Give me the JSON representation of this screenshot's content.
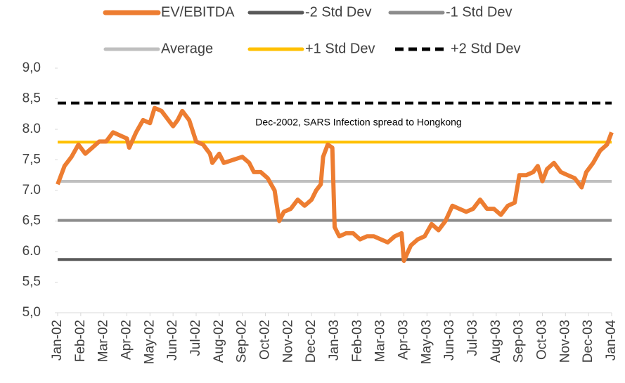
{
  "chart_data": {
    "type": "line",
    "annotation": "Dec-2002, SARS Infection spread to Hongkong",
    "xlim": [
      0,
      24
    ],
    "xticks": [
      {
        "value": 0,
        "label": "Jan-02"
      },
      {
        "value": 1,
        "label": "Feb-02"
      },
      {
        "value": 2,
        "label": "Mar-02"
      },
      {
        "value": 3,
        "label": "Apr-02"
      },
      {
        "value": 4,
        "label": "May-02"
      },
      {
        "value": 5,
        "label": "Jun-02"
      },
      {
        "value": 6,
        "label": "Jul-02"
      },
      {
        "value": 7,
        "label": "Aug-02"
      },
      {
        "value": 8,
        "label": "Sep-02"
      },
      {
        "value": 9,
        "label": "Oct-02"
      },
      {
        "value": 10,
        "label": "Nov-02"
      },
      {
        "value": 11,
        "label": "Dec-02"
      },
      {
        "value": 12,
        "label": "Jan-03"
      },
      {
        "value": 13,
        "label": "Feb-03"
      },
      {
        "value": 14,
        "label": "Mar-03"
      },
      {
        "value": 15,
        "label": "Apr-03"
      },
      {
        "value": 16,
        "label": "May-03"
      },
      {
        "value": 17,
        "label": "Jun-03"
      },
      {
        "value": 18,
        "label": "Jul-03"
      },
      {
        "value": 19,
        "label": "Aug-03"
      },
      {
        "value": 20,
        "label": "Sep-03"
      },
      {
        "value": 21,
        "label": "Oct-03"
      },
      {
        "value": 22,
        "label": "Nov-03"
      },
      {
        "value": 23,
        "label": "Dec-03"
      },
      {
        "value": 24,
        "label": "Jan-04"
      }
    ],
    "ylim": [
      5.0,
      9.0
    ],
    "yticks": [
      {
        "value": 5.0,
        "label": "5,0"
      },
      {
        "value": 5.5,
        "label": "5,5"
      },
      {
        "value": 6.0,
        "label": "6.0"
      },
      {
        "value": 6.5,
        "label": "6,5"
      },
      {
        "value": 7.0,
        "label": "7.0"
      },
      {
        "value": 7.5,
        "label": "7,5"
      },
      {
        "value": 8.0,
        "label": "8.0"
      },
      {
        "value": 8.5,
        "label": "8,5"
      },
      {
        "value": 9.0,
        "label": "9,0"
      }
    ],
    "series": [
      {
        "name": "EV/EBITDA",
        "color": "#ed7d31",
        "x": [
          0,
          0.3,
          0.6,
          0.9,
          1.2,
          1.5,
          1.8,
          2.1,
          2.4,
          2.7,
          3.0,
          3.1,
          3.4,
          3.7,
          4.0,
          4.2,
          4.5,
          4.8,
          5.0,
          5.2,
          5.4,
          5.7,
          6.0,
          6.3,
          6.6,
          6.7,
          7.0,
          7.2,
          7.6,
          8.0,
          8.3,
          8.5,
          8.8,
          9.1,
          9.4,
          9.6,
          9.8,
          10.1,
          10.4,
          10.7,
          11.0,
          11.2,
          11.4,
          11.5,
          11.7,
          11.9,
          12.0,
          12.2,
          12.5,
          12.8,
          13.1,
          13.4,
          13.7,
          14.0,
          14.3,
          14.6,
          14.9,
          15.0,
          15.3,
          15.6,
          15.9,
          16.2,
          16.5,
          16.8,
          17.1,
          17.4,
          17.7,
          18.0,
          18.3,
          18.6,
          18.9,
          19.2,
          19.5,
          19.8,
          20.0,
          20.3,
          20.6,
          20.8,
          21.0,
          21.2,
          21.5,
          21.8,
          22.1,
          22.4,
          22.7,
          22.9,
          23.2,
          23.5,
          23.8,
          24.0
        ],
        "values": [
          7.1,
          7.4,
          7.55,
          7.75,
          7.6,
          7.7,
          7.8,
          7.8,
          7.95,
          7.9,
          7.85,
          7.7,
          7.95,
          8.15,
          8.1,
          8.35,
          8.3,
          8.15,
          8.05,
          8.15,
          8.3,
          8.15,
          7.8,
          7.75,
          7.6,
          7.45,
          7.6,
          7.45,
          7.5,
          7.55,
          7.45,
          7.3,
          7.3,
          7.2,
          7.0,
          6.5,
          6.65,
          6.7,
          6.85,
          6.75,
          6.85,
          7.0,
          7.1,
          7.55,
          7.75,
          7.7,
          6.4,
          6.25,
          6.3,
          6.3,
          6.2,
          6.25,
          6.25,
          6.2,
          6.15,
          6.25,
          6.3,
          5.85,
          6.1,
          6.2,
          6.25,
          6.45,
          6.35,
          6.5,
          6.75,
          6.7,
          6.65,
          6.7,
          6.85,
          6.7,
          6.7,
          6.6,
          6.75,
          6.8,
          7.25,
          7.25,
          7.3,
          7.4,
          7.15,
          7.35,
          7.45,
          7.3,
          7.25,
          7.2,
          7.05,
          7.3,
          7.45,
          7.65,
          7.75,
          7.95
        ]
      },
      {
        "name": "-2 Std Dev",
        "color": "#595959",
        "value": 5.87
      },
      {
        "name": "-1 Std Dev",
        "color": "#8c8c8c",
        "value": 6.51
      },
      {
        "name": "Average",
        "color": "#bfbfbf",
        "value": 7.15
      },
      {
        "name": "+1 Std Dev",
        "color": "#ffc000",
        "value": 7.79
      },
      {
        "name": "+2 Std Dev",
        "color": "#000000",
        "value": 8.43,
        "dashed": true
      }
    ]
  }
}
